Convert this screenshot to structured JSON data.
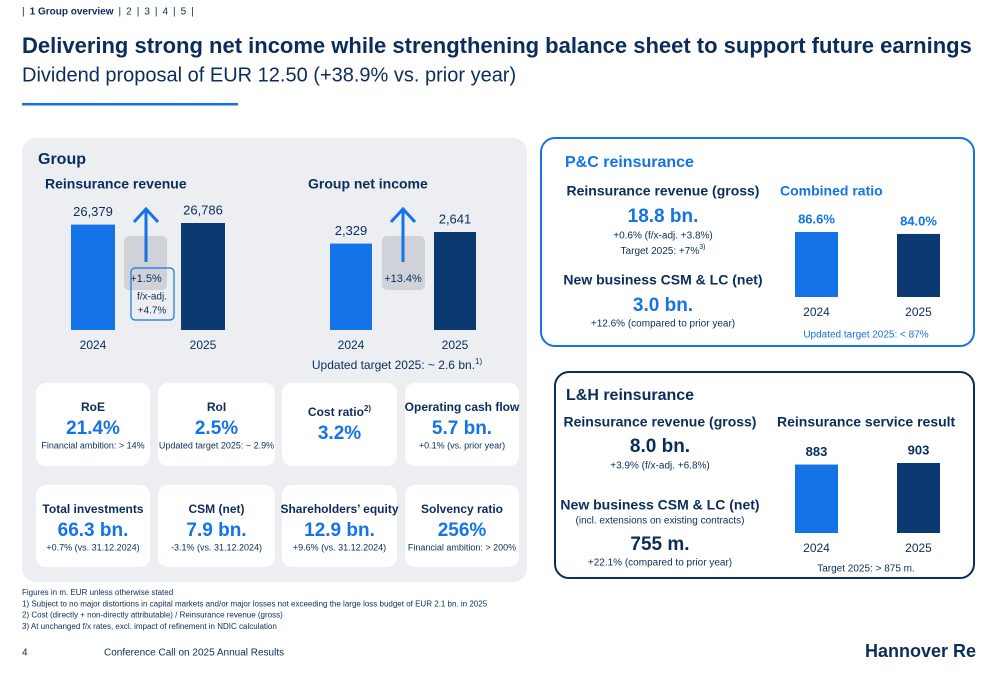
{
  "nav": {
    "separator": "|",
    "items": [
      "1 Group overview",
      "2",
      "3",
      "4",
      "5"
    ]
  },
  "title": "Delivering strong net income while strengthening balance sheet to support future earnings",
  "subtitle": "Dividend proposal of EUR 12.50 (+38.9% vs. prior year)",
  "group": {
    "heading": "Group",
    "revenue_chart": {
      "title": "Reinsurance revenue",
      "categories": [
        "2024",
        "2025"
      ],
      "values": [
        26379,
        26786
      ],
      "value_labels": [
        "26,379",
        "26,786"
      ],
      "colors": [
        "#1473e6",
        "#0b3a73"
      ],
      "change": "+1.5%",
      "fx_label": "f/x-adj.",
      "fx_value": "+4.7%"
    },
    "income_chart": {
      "title": "Group net income",
      "categories": [
        "2024",
        "2025"
      ],
      "values": [
        2329,
        2641
      ],
      "value_labels": [
        "2,329",
        "2,641"
      ],
      "colors": [
        "#1473e6",
        "#0b3a73"
      ],
      "change": "+13.4%",
      "note": "Updated target 2025: ~ 2.6 bn.",
      "note_sup": "1)"
    },
    "kpis": [
      {
        "label": "RoE",
        "value": "21.4%",
        "note": "Financial ambition: > 14%"
      },
      {
        "label": "RoI",
        "value": "2.5%",
        "note": "Updated target 2025: ~ 2.9%"
      },
      {
        "label": "Cost ratio",
        "label_sup": "2)",
        "value": "3.2%"
      },
      {
        "label": "Operating cash flow",
        "value": "5.7 bn.",
        "note": "+0.1% (vs. prior year)"
      },
      {
        "label": "Total investments",
        "value": "66.3 bn.",
        "note": "+0.7% (vs. 31.12.2024)"
      },
      {
        "label": "CSM (net)",
        "value": "7.9 bn.",
        "note": "-3.1% (vs. 31.12.2024)"
      },
      {
        "label": "Shareholders’ equity",
        "value": "12.9 bn.",
        "note": "+9.6% (vs. 31.12.2024)"
      },
      {
        "label": "Solvency ratio",
        "value": "256%",
        "note": "Financial ambition: > 200%"
      }
    ]
  },
  "pc": {
    "heading": "P&C reinsurance",
    "revenue_label": "Reinsurance revenue (gross)",
    "revenue_value": "18.8 bn.",
    "revenue_note": "+0.6% (f/x-adj. +3.8%)",
    "target": "Target 2025: +7%",
    "target_sup": "3)",
    "csm_label": "New business CSM & LC (net)",
    "csm_value": "3.0 bn.",
    "csm_note": "+12.6% (compared to prior year)",
    "chart": {
      "title": "Combined ratio",
      "categories": [
        "2024",
        "2025"
      ],
      "values": [
        86.6,
        84.0
      ],
      "value_labels": [
        "86.6%",
        "84.0%"
      ],
      "colors": [
        "#1473e6",
        "#0b3a73"
      ],
      "note": "Updated target 2025: < 87%"
    }
  },
  "lh": {
    "heading": "L&H reinsurance",
    "revenue_label": "Reinsurance revenue (gross)",
    "revenue_value": "8.0 bn.",
    "revenue_note": "+3.9% (f/x-adj. +6.8%)",
    "csm_label": "New business CSM & LC (net)",
    "csm_sub": "(incl. extensions on existing contracts)",
    "csm_value": "755 m.",
    "csm_note": "+22.1% (compared to prior year)",
    "chart": {
      "title": "Reinsurance service result",
      "categories": [
        "2024",
        "2025"
      ],
      "values": [
        883,
        903
      ],
      "colors": [
        "#1473e6",
        "#0b3a73"
      ],
      "note": "Target 2025: > 875 m."
    }
  },
  "footnotes": [
    "Figures in m. EUR unless otherwise stated",
    "1) Subject to no major distortions in capital markets and/or major losses not exceeding the large loss budget of EUR 2.1 bn. in 2025",
    "2) Cost (directly + non-directly attributable) / Reinsurance revenue (gross)",
    "3) At unchanged f/x rates, excl. impact of refinement in NDIC calculation"
  ],
  "footer": {
    "page": "4",
    "event": "Conference Call on 2025 Annual Results",
    "logo": "Hannover Re"
  }
}
